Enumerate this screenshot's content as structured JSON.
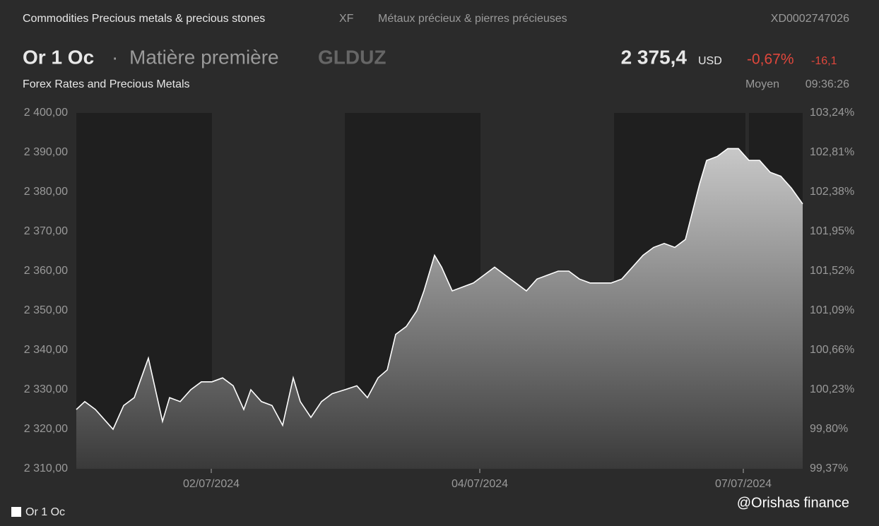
{
  "header": {
    "breadcrumb": "Commodities Precious metals & precious stones",
    "exchange": "XF",
    "category_fr": "Métaux précieux & pierres précieuses",
    "isin": "XD0002747026",
    "name": "Or 1 Oc",
    "separator": "·",
    "kind": "Matière première",
    "symbol": "GLDUZ",
    "price": "2 375,4",
    "currency": "USD",
    "change_pct": "-0,67%",
    "change": "-16,1",
    "subtitle": "Forex Rates and Precious Metals",
    "quote_type": "Moyen",
    "time": "09:36:26"
  },
  "watermark": "@Orishas finance",
  "chart_data": {
    "type": "line",
    "x": [
      0,
      12,
      27,
      42,
      52,
      67,
      82,
      92,
      102,
      112,
      122,
      132,
      147,
      162,
      177,
      192,
      207,
      222,
      237,
      247,
      262,
      277,
      292,
      307,
      317,
      332,
      347,
      362,
      380,
      397,
      412,
      427,
      440,
      452,
      467,
      482,
      492,
      507,
      517,
      532,
      547,
      562,
      577,
      592,
      607,
      622,
      637,
      652,
      667,
      682,
      697,
      712,
      727,
      742,
      757,
      772,
      787,
      802,
      817,
      832,
      847,
      862,
      872,
      882,
      892,
      907,
      922,
      937,
      952,
      967,
      982,
      997,
      1012,
      1028
    ],
    "series": [
      {
        "name": "Or 1 Oc",
        "color": "#ffffff",
        "values": [
          2325,
          2327,
          2325,
          2322,
          2320,
          2326,
          2328,
          2333,
          2338,
          2330,
          2322,
          2328,
          2327,
          2330,
          2332,
          2332,
          2333,
          2331,
          2325,
          2330,
          2327,
          2326,
          2321,
          2333,
          2327,
          2323,
          2327,
          2329,
          2330,
          2331,
          2328,
          2333,
          2335,
          2344,
          2346,
          2350,
          2355,
          2364,
          2361,
          2355,
          2356,
          2357,
          2359,
          2361,
          2359,
          2357,
          2355,
          2358,
          2359,
          2360,
          2360,
          2358,
          2357,
          2357,
          2357,
          2358,
          2361,
          2364,
          2366,
          2367,
          2366,
          2368,
          2375,
          2382,
          2388,
          2389,
          2391,
          2391,
          2388,
          2388,
          2385,
          2384,
          2381,
          2377
        ]
      }
    ],
    "xlim": [
      0,
      1028
    ],
    "xticks": [
      {
        "value": 191,
        "label": "02/07/2024"
      },
      {
        "value": 571,
        "label": "04/07/2024"
      },
      {
        "value": 944,
        "label": "07/07/2024"
      }
    ],
    "ylim": [
      2310,
      2400
    ],
    "yticks": [
      {
        "value": 2310,
        "label": "2 310,00"
      },
      {
        "value": 2320,
        "label": "2 320,00"
      },
      {
        "value": 2330,
        "label": "2 330,00"
      },
      {
        "value": 2340,
        "label": "2 340,00"
      },
      {
        "value": 2350,
        "label": "2 350,00"
      },
      {
        "value": 2360,
        "label": "2 360,00"
      },
      {
        "value": 2370,
        "label": "2 370,00"
      },
      {
        "value": 2380,
        "label": "2 380,00"
      },
      {
        "value": 2390,
        "label": "2 390,00"
      },
      {
        "value": 2400,
        "label": "2 400,00"
      }
    ],
    "y2lim": [
      99.37,
      103.24
    ],
    "y2ticks": [
      {
        "value": 99.37,
        "label": "99,37%"
      },
      {
        "value": 99.8,
        "label": "99,80%"
      },
      {
        "value": 100.23,
        "label": "100,23%"
      },
      {
        "value": 100.66,
        "label": "100,66%"
      },
      {
        "value": 101.09,
        "label": "101,09%"
      },
      {
        "value": 101.52,
        "label": "101,52%"
      },
      {
        "value": 101.95,
        "label": "101,95%"
      },
      {
        "value": 102.38,
        "label": "102,38%"
      },
      {
        "value": 102.81,
        "label": "102,81%"
      },
      {
        "value": 103.24,
        "label": "103,24%"
      }
    ]
  }
}
